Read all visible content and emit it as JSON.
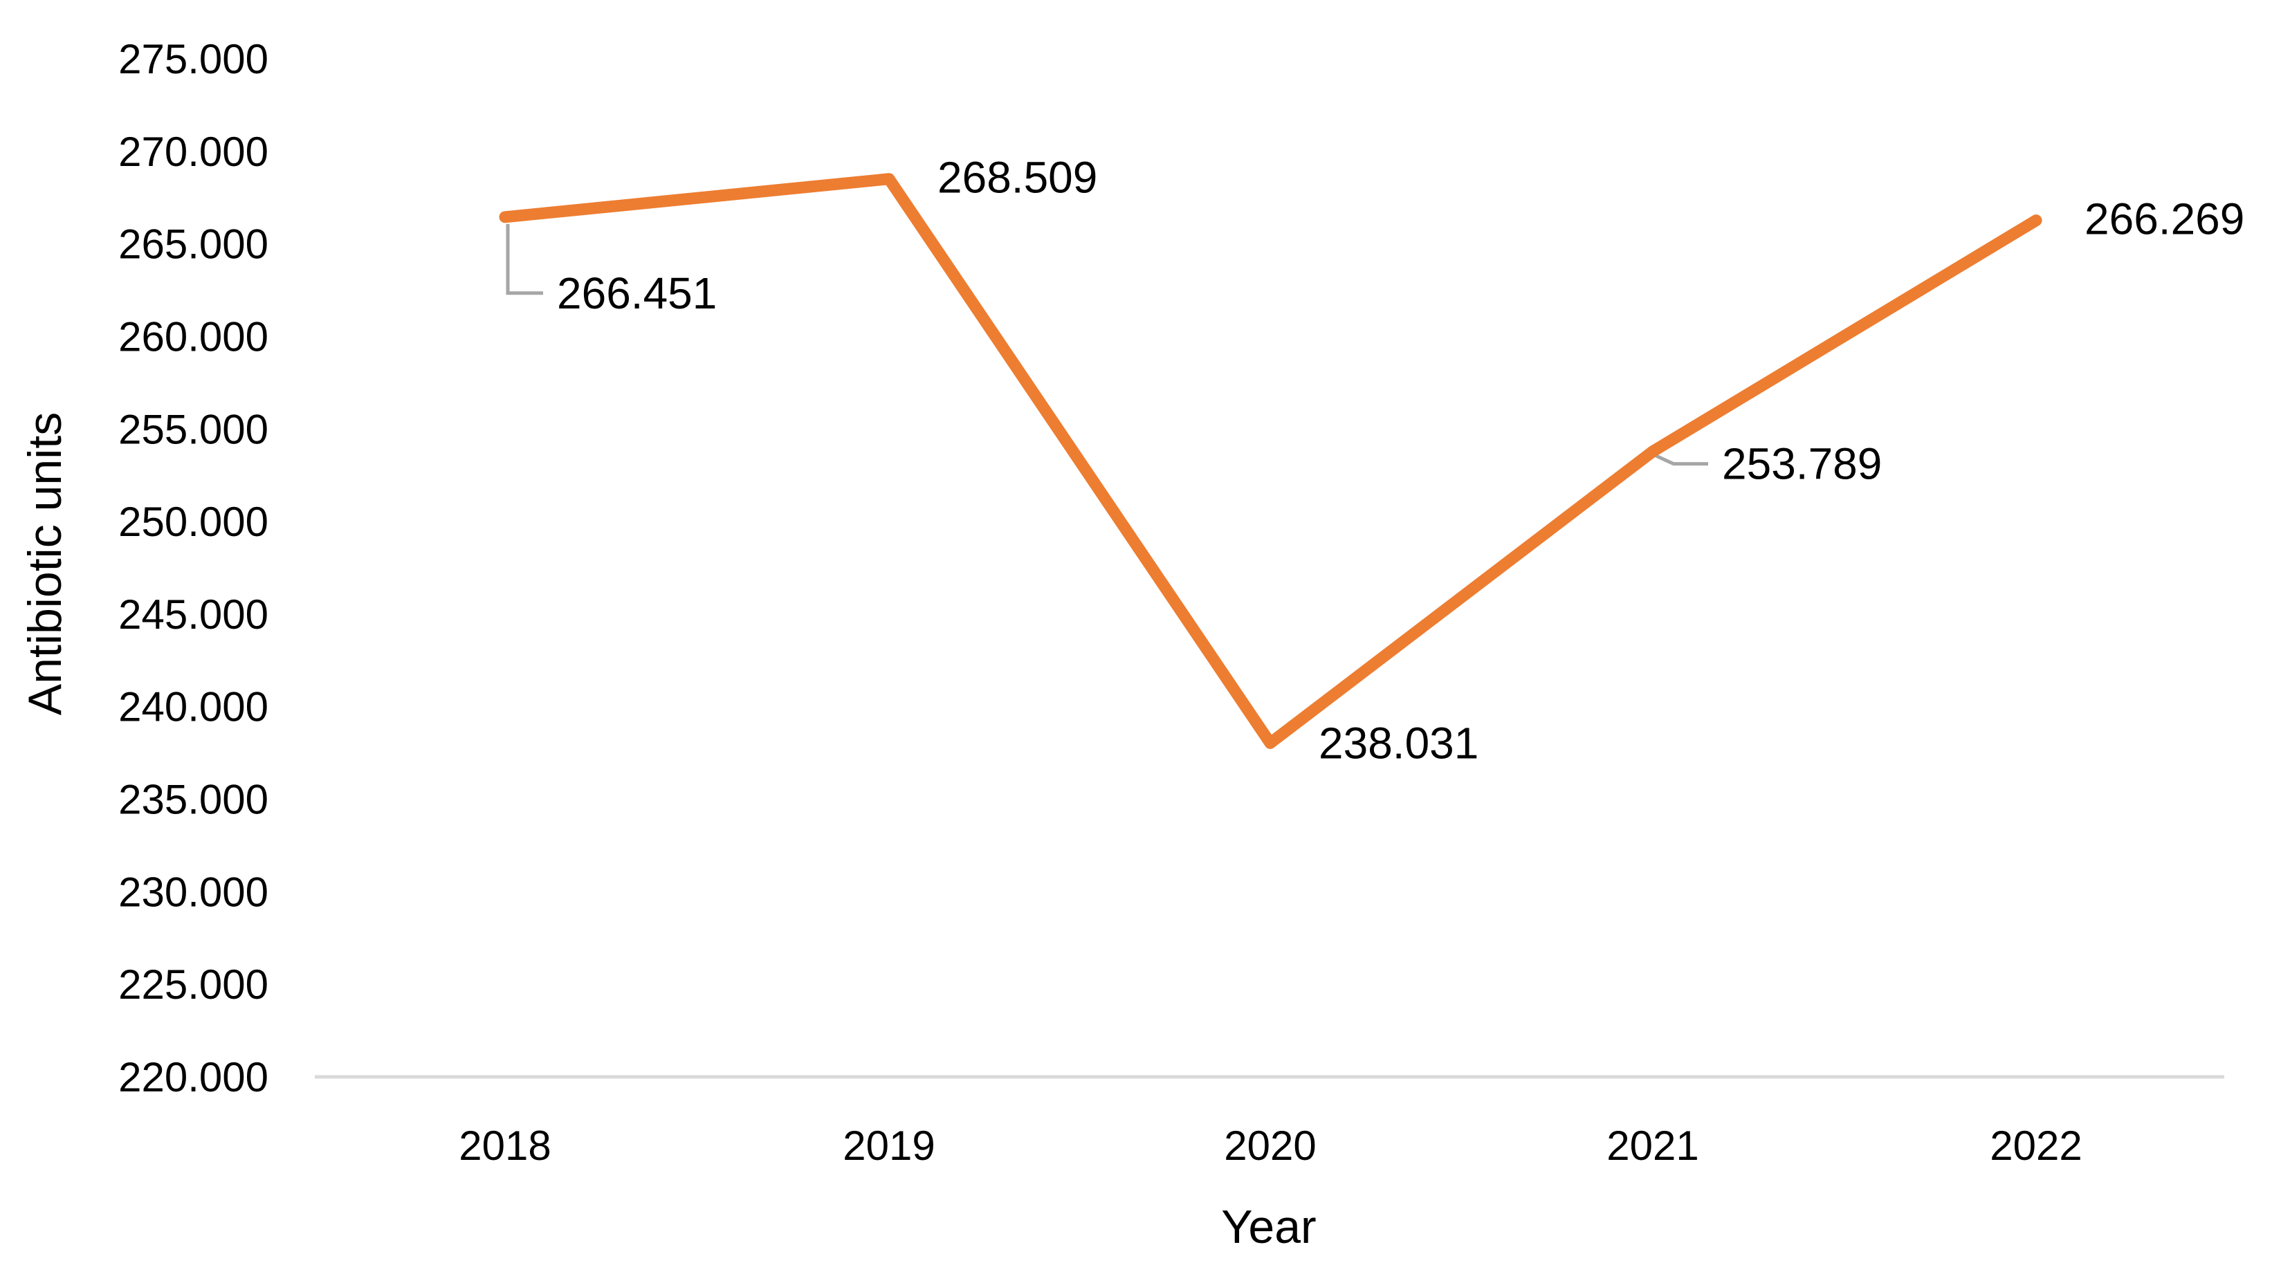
{
  "chart_data": {
    "type": "line",
    "title": "",
    "xlabel": "Year",
    "ylabel": "Antibiotic units",
    "categories": [
      "2018",
      "2019",
      "2020",
      "2021",
      "2022"
    ],
    "series": [
      {
        "values": [
          266.451,
          268.509,
          238.031,
          253.789,
          266.269
        ],
        "data_labels": [
          "266.451",
          "268.509",
          "238.031",
          "253.789",
          "266.269"
        ],
        "color": "#ED7D31"
      }
    ],
    "ylim": [
      220,
      275
    ],
    "yticks": [
      {
        "value": 220,
        "label": "220.000"
      },
      {
        "value": 225,
        "label": "225.000"
      },
      {
        "value": 230,
        "label": "230.000"
      },
      {
        "value": 235,
        "label": "235.000"
      },
      {
        "value": 240,
        "label": "240.000"
      },
      {
        "value": 245,
        "label": "245.000"
      },
      {
        "value": 250,
        "label": "250.000"
      },
      {
        "value": 255,
        "label": "255.000"
      },
      {
        "value": 260,
        "label": "260.000"
      },
      {
        "value": 265,
        "label": "265.000"
      },
      {
        "value": 270,
        "label": "270.000"
      },
      {
        "value": 275,
        "label": "275.000"
      }
    ],
    "grid": false,
    "legend": "none",
    "axis_color": "#D9D9D9",
    "leader_line_color": "#A6A6A6"
  }
}
